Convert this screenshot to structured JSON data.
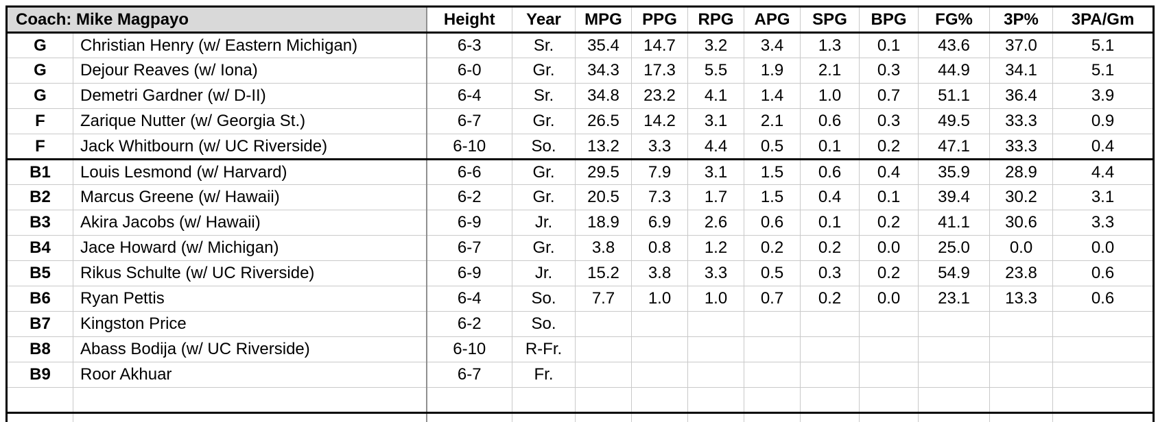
{
  "header": {
    "coach_label": "Coach: Mike Magpayo",
    "columns": [
      "Height",
      "Year",
      "MPG",
      "PPG",
      "RPG",
      "APG",
      "SPG",
      "BPG",
      "FG%",
      "3P%",
      "3PA/Gm"
    ]
  },
  "roster": {
    "starters_count": 5,
    "trailing_empty_rows": 1,
    "rows": [
      {
        "pos": "G",
        "name": "Christian Henry (w/ Eastern Michigan)",
        "height": "6-3",
        "year": "Sr.",
        "stats": [
          "35.4",
          "14.7",
          "3.2",
          "3.4",
          "1.3",
          "0.1",
          "43.6",
          "37.0",
          "5.1"
        ]
      },
      {
        "pos": "G",
        "name": "Dejour Reaves (w/ Iona)",
        "height": "6-0",
        "year": "Gr.",
        "stats": [
          "34.3",
          "17.3",
          "5.5",
          "1.9",
          "2.1",
          "0.3",
          "44.9",
          "34.1",
          "5.1"
        ]
      },
      {
        "pos": "G",
        "name": "Demetri Gardner (w/ D-II)",
        "height": "6-4",
        "year": "Sr.",
        "stats": [
          "34.8",
          "23.2",
          "4.1",
          "1.4",
          "1.0",
          "0.7",
          "51.1",
          "36.4",
          "3.9"
        ]
      },
      {
        "pos": "F",
        "name": "Zarique Nutter (w/ Georgia St.)",
        "height": "6-7",
        "year": "Gr.",
        "stats": [
          "26.5",
          "14.2",
          "3.1",
          "2.1",
          "0.6",
          "0.3",
          "49.5",
          "33.3",
          "0.9"
        ]
      },
      {
        "pos": "F",
        "name": "Jack Whitbourn (w/ UC Riverside)",
        "height": "6-10",
        "year": "So.",
        "stats": [
          "13.2",
          "3.3",
          "4.4",
          "0.5",
          "0.1",
          "0.2",
          "47.1",
          "33.3",
          "0.4"
        ]
      },
      {
        "pos": "B1",
        "name": "Louis Lesmond (w/ Harvard)",
        "height": "6-6",
        "year": "Gr.",
        "stats": [
          "29.5",
          "7.9",
          "3.1",
          "1.5",
          "0.6",
          "0.4",
          "35.9",
          "28.9",
          "4.4"
        ]
      },
      {
        "pos": "B2",
        "name": "Marcus Greene (w/ Hawaii)",
        "height": "6-2",
        "year": "Gr.",
        "stats": [
          "20.5",
          "7.3",
          "1.7",
          "1.5",
          "0.4",
          "0.1",
          "39.4",
          "30.2",
          "3.1"
        ]
      },
      {
        "pos": "B3",
        "name": "Akira Jacobs (w/ Hawaii)",
        "height": "6-9",
        "year": "Jr.",
        "stats": [
          "18.9",
          "6.9",
          "2.6",
          "0.6",
          "0.1",
          "0.2",
          "41.1",
          "30.6",
          "3.3"
        ]
      },
      {
        "pos": "B4",
        "name": "Jace Howard (w/ Michigan)",
        "height": "6-7",
        "year": "Gr.",
        "stats": [
          "3.8",
          "0.8",
          "1.2",
          "0.2",
          "0.2",
          "0.0",
          "25.0",
          "0.0",
          "0.0"
        ]
      },
      {
        "pos": "B5",
        "name": "Rikus Schulte (w/ UC Riverside)",
        "height": "6-9",
        "year": "Jr.",
        "stats": [
          "15.2",
          "3.8",
          "3.3",
          "0.5",
          "0.3",
          "0.2",
          "54.9",
          "23.8",
          "0.6"
        ]
      },
      {
        "pos": "B6",
        "name": "Ryan Pettis",
        "height": "6-4",
        "year": "So.",
        "stats": [
          "7.7",
          "1.0",
          "1.0",
          "0.7",
          "0.2",
          "0.0",
          "23.1",
          "13.3",
          "0.6"
        ]
      },
      {
        "pos": "B7",
        "name": "Kingston Price",
        "height": "6-2",
        "year": "So.",
        "stats": [
          "",
          "",
          "",
          "",
          "",
          "",
          "",
          "",
          ""
        ]
      },
      {
        "pos": "B8",
        "name": "Abass Bodija (w/ UC Riverside)",
        "height": "6-10",
        "year": "R-Fr.",
        "stats": [
          "",
          "",
          "",
          "",
          "",
          "",
          "",
          "",
          ""
        ]
      },
      {
        "pos": "B9",
        "name": "Roor Akhuar",
        "height": "6-7",
        "year": "Fr.",
        "stats": [
          "",
          "",
          "",
          "",
          "",
          "",
          "",
          "",
          ""
        ]
      }
    ]
  },
  "colors": {
    "header_bg": "#d9d9d9",
    "grid_line": "#c9c9c9",
    "strong_border": "#000000",
    "text": "#000000"
  }
}
